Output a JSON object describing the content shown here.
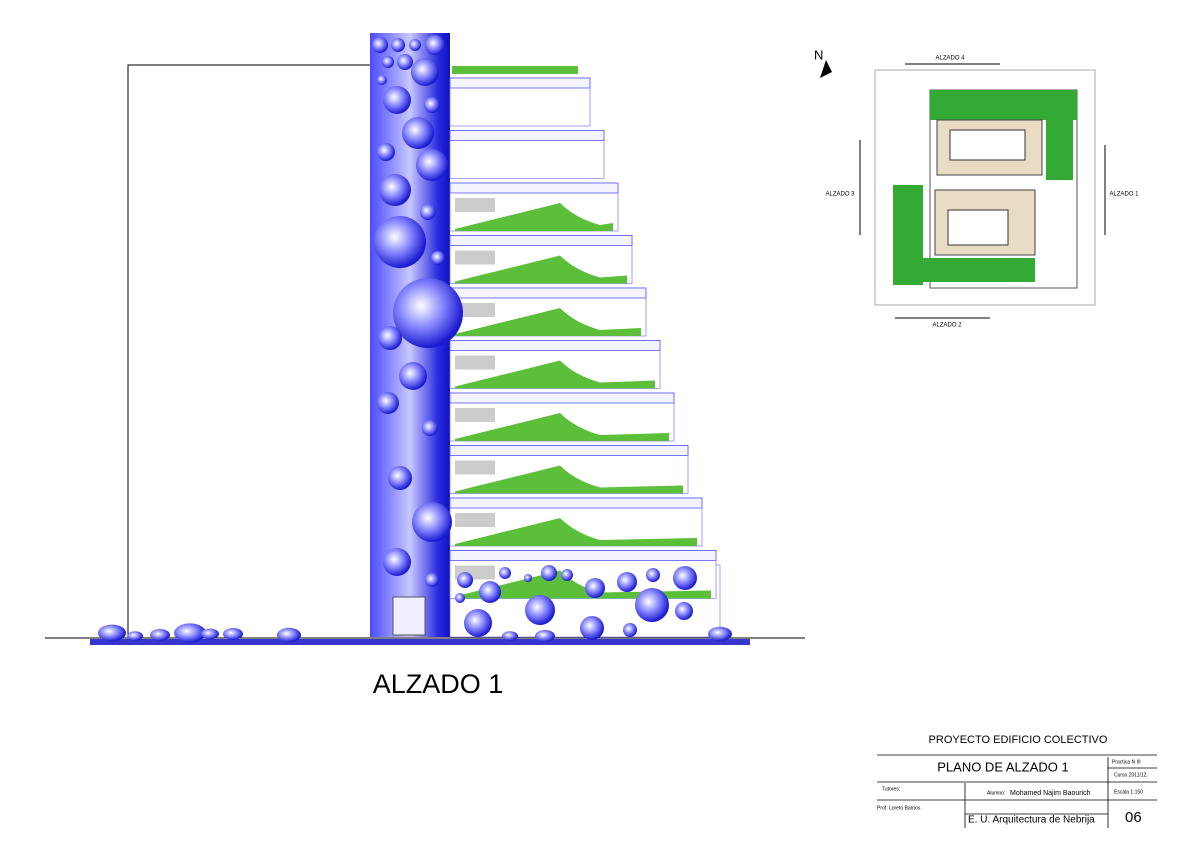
{
  "drawing": {
    "title": "ALZADO 1",
    "north": "N"
  },
  "plan": {
    "labels": [
      "ALZADO 4",
      "ALZADO 3",
      "ALZADO 1",
      "ALZADO 2"
    ]
  },
  "title_block": {
    "project": "PROYECTO EDIFICIO COLECTIVO",
    "sheet": "PLANO DE ALZADO 1",
    "practice": "Practica N III",
    "course": "Curso 2011/12.",
    "scale": "Escala 1:150",
    "tutors": "Tutores:",
    "student_label": "Alumno:",
    "student": "Mohamed Najim Baourich",
    "professor": "Prof. Loreto Barrios",
    "school": "E. U. Arquitectura de Nebrija",
    "number": "06"
  }
}
